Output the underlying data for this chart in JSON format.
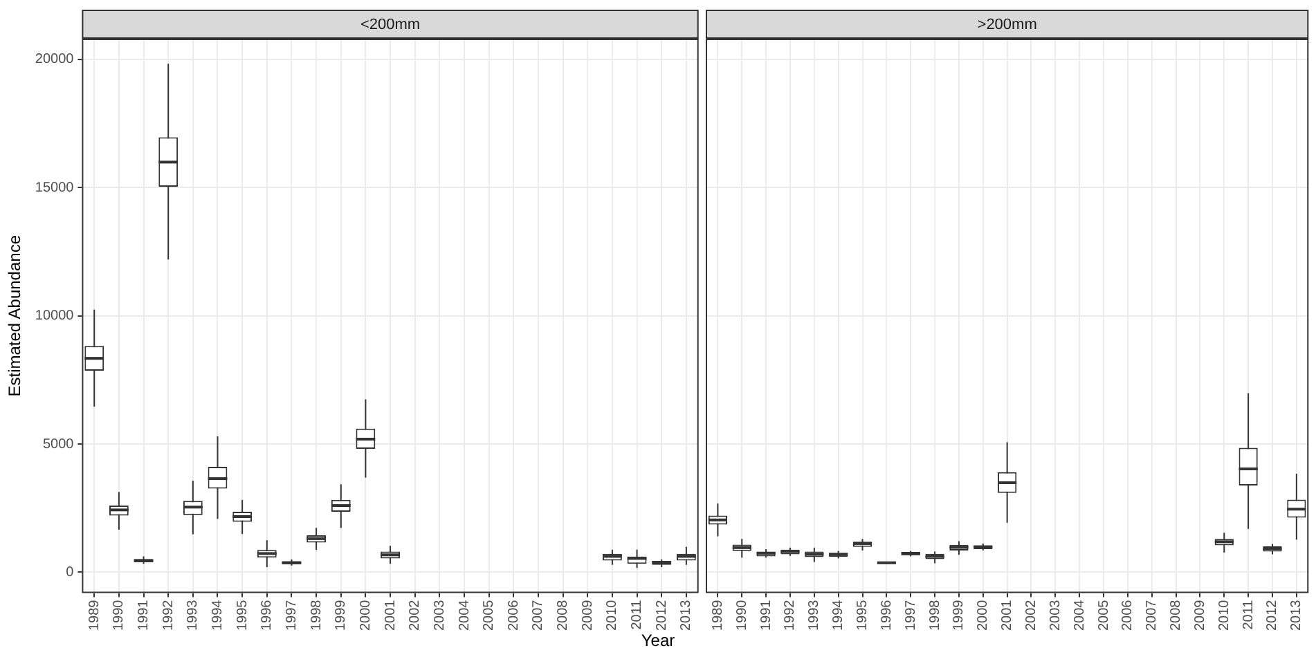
{
  "chart_data": [
    {
      "type": "box",
      "title": "<200mm",
      "ylabel": "Estimated Abundance",
      "xlabel": "Year",
      "color": "#333333",
      "grid": true,
      "categories": [
        "1989",
        "1990",
        "1991",
        "1992",
        "1993",
        "1994",
        "1995",
        "1996",
        "1997",
        "1998",
        "1999",
        "2000",
        "2001",
        "2002",
        "2003",
        "2004",
        "2005",
        "2006",
        "2007",
        "2008",
        "2009",
        "2010",
        "2011",
        "2012",
        "2013"
      ],
      "ylim": [
        -810,
        20800
      ],
      "yticks": [
        0,
        5000,
        10000,
        15000,
        20000
      ],
      "boxes": [
        {
          "low": 6460,
          "q1": 7860,
          "median": 8340,
          "q3": 8820,
          "high": 10240
        },
        {
          "low": 1660,
          "q1": 2210,
          "median": 2430,
          "q3": 2600,
          "high": 3130
        },
        {
          "low": 330,
          "q1": 390,
          "median": 450,
          "q3": 520,
          "high": 620
        },
        {
          "low": 12190,
          "q1": 15030,
          "median": 15990,
          "q3": 16960,
          "high": 19820
        },
        {
          "low": 1480,
          "q1": 2230,
          "median": 2540,
          "q3": 2780,
          "high": 3570
        },
        {
          "low": 2080,
          "q1": 3260,
          "median": 3650,
          "q3": 4110,
          "high": 5300
        },
        {
          "low": 1490,
          "q1": 1970,
          "median": 2170,
          "q3": 2360,
          "high": 2820
        },
        {
          "low": 200,
          "q1": 570,
          "median": 730,
          "q3": 870,
          "high": 1250
        },
        {
          "low": 260,
          "q1": 310,
          "median": 370,
          "q3": 430,
          "high": 500
        },
        {
          "low": 870,
          "q1": 1160,
          "median": 1310,
          "q3": 1440,
          "high": 1730
        },
        {
          "low": 1730,
          "q1": 2360,
          "median": 2600,
          "q3": 2820,
          "high": 3430
        },
        {
          "low": 3690,
          "q1": 4810,
          "median": 5190,
          "q3": 5600,
          "high": 6740
        },
        {
          "low": 330,
          "q1": 540,
          "median": 680,
          "q3": 810,
          "high": 1030
        },
        null,
        null,
        null,
        null,
        null,
        null,
        null,
        null,
        {
          "low": 290,
          "q1": 460,
          "median": 620,
          "q3": 720,
          "high": 880
        },
        {
          "low": 170,
          "q1": 330,
          "median": 540,
          "q3": 610,
          "high": 880
        },
        {
          "low": 200,
          "q1": 290,
          "median": 390,
          "q3": 440,
          "high": 500
        },
        {
          "low": 290,
          "q1": 460,
          "median": 620,
          "q3": 720,
          "high": 990
        }
      ]
    },
    {
      "type": "box",
      "title": ">200mm",
      "color": "#333333",
      "grid": true,
      "tick_labels": "x",
      "categories": [
        "1989",
        "1990",
        "1991",
        "1992",
        "1993",
        "1994",
        "1995",
        "1996",
        "1997",
        "1998",
        "1999",
        "2000",
        "2001",
        "2002",
        "2003",
        "2004",
        "2005",
        "2006",
        "2007",
        "2008",
        "2009",
        "2010",
        "2011",
        "2012",
        "2013"
      ],
      "ylim": [
        -810,
        20800
      ],
      "yticks": [
        0,
        5000,
        10000,
        15000,
        20000
      ],
      "boxes": [
        {
          "low": 1400,
          "q1": 1860,
          "median": 2040,
          "q3": 2210,
          "high": 2680
        },
        {
          "low": 570,
          "q1": 830,
          "median": 960,
          "q3": 1080,
          "high": 1300
        },
        {
          "low": 570,
          "q1": 620,
          "median": 740,
          "q3": 810,
          "high": 900
        },
        {
          "low": 640,
          "q1": 700,
          "median": 810,
          "q3": 880,
          "high": 960
        },
        {
          "low": 400,
          "q1": 590,
          "median": 700,
          "q3": 810,
          "high": 960
        },
        {
          "low": 540,
          "q1": 600,
          "median": 690,
          "q3": 760,
          "high": 830
        },
        {
          "low": 850,
          "q1": 990,
          "median": 1120,
          "q3": 1190,
          "high": 1300
        },
        {
          "low": 330,
          "q1": 330,
          "median": 370,
          "q3": 400,
          "high": 400
        },
        {
          "low": 620,
          "q1": 660,
          "median": 740,
          "q3": 790,
          "high": 830
        },
        {
          "low": 350,
          "q1": 510,
          "median": 620,
          "q3": 720,
          "high": 810
        },
        {
          "low": 680,
          "q1": 850,
          "median": 970,
          "q3": 1070,
          "high": 1210
        },
        {
          "low": 850,
          "q1": 900,
          "median": 990,
          "q3": 1050,
          "high": 1120
        },
        {
          "low": 1930,
          "q1": 3090,
          "median": 3490,
          "q3": 3900,
          "high": 5070
        },
        null,
        null,
        null,
        null,
        null,
        null,
        null,
        null,
        {
          "low": 770,
          "q1": 1050,
          "median": 1190,
          "q3": 1300,
          "high": 1540
        },
        {
          "low": 1690,
          "q1": 3380,
          "median": 4030,
          "q3": 4850,
          "high": 6980
        },
        {
          "low": 700,
          "q1": 810,
          "median": 920,
          "q3": 1010,
          "high": 1100
        },
        {
          "low": 1270,
          "q1": 2130,
          "median": 2460,
          "q3": 2830,
          "high": 3840
        }
      ]
    }
  ]
}
